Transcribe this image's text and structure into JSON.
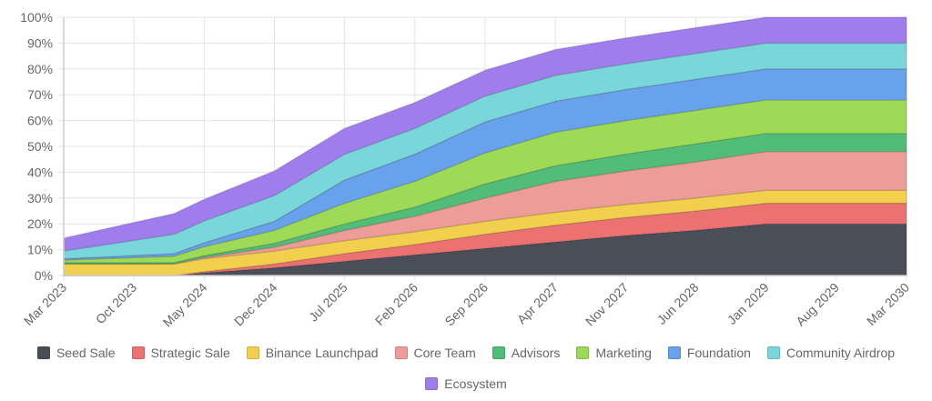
{
  "chart_data": {
    "type": "area",
    "stacked": true,
    "title": "",
    "xlabel": "",
    "ylabel": "",
    "ylim": [
      0,
      100
    ],
    "y_tick_format": "percent",
    "y_ticks": [
      "0%",
      "10%",
      "20%",
      "30%",
      "40%",
      "50%",
      "60%",
      "70%",
      "80%",
      "90%",
      "100%"
    ],
    "x_tick_labels": [
      "Mar 2023",
      "Oct 2023",
      "May 2024",
      "Dec 2024",
      "Jul 2025",
      "Feb 2026",
      "Sep 2026",
      "Apr 2027",
      "Nov 2027",
      "Jun 2028",
      "Jan 2029",
      "Aug 2029",
      "Mar 2030"
    ],
    "grid": true,
    "legend_position": "bottom",
    "x": [
      "2023-03",
      "2024-02",
      "2024-05",
      "2024-12",
      "2025-07",
      "2026-02",
      "2026-09",
      "2027-04",
      "2027-11",
      "2028-06",
      "2029-01",
      "2030-03"
    ],
    "series": [
      {
        "name": "Seed Sale",
        "color": "#4a4f57",
        "values": [
          0,
          0,
          1,
          3,
          5.5,
          8,
          10.5,
          13,
          15.5,
          17.5,
          20,
          20
        ]
      },
      {
        "name": "Strategic Sale",
        "color": "#ec7272",
        "values": [
          0,
          0,
          0.5,
          1.5,
          3,
          4,
          5.5,
          6.5,
          7,
          7.5,
          8,
          8
        ]
      },
      {
        "name": "Binance Launchpad",
        "color": "#f2d04e",
        "values": [
          4.5,
          4.5,
          5,
          5,
          5,
          5,
          5,
          5,
          5,
          5,
          5,
          5
        ]
      },
      {
        "name": "Core Team",
        "color": "#ee9c98",
        "values": [
          0,
          0,
          0.5,
          1.5,
          4,
          6,
          9,
          12,
          13,
          14,
          15,
          15
        ]
      },
      {
        "name": "Advisors",
        "color": "#52bd78",
        "values": [
          0.5,
          0.5,
          0.7,
          1.5,
          2.5,
          3.5,
          5.5,
          6,
          6.5,
          7,
          7,
          7
        ]
      },
      {
        "name": "Marketing",
        "color": "#9ddb56",
        "values": [
          1,
          2.5,
          3.5,
          5,
          8,
          10,
          12,
          13,
          13,
          13,
          13,
          13
        ]
      },
      {
        "name": "Foundation",
        "color": "#68a1ec",
        "values": [
          0.5,
          1,
          1.5,
          3.5,
          9,
          10.5,
          12,
          12,
          12,
          12,
          12,
          12
        ]
      },
      {
        "name": "Community Airdrop",
        "color": "#79d6da",
        "values": [
          3,
          7.5,
          8.5,
          10,
          10,
          10,
          10,
          10,
          10,
          10,
          10,
          10
        ]
      },
      {
        "name": "Ecosystem",
        "color": "#a07ded",
        "values": [
          5,
          8,
          8.3,
          9.5,
          10,
          10,
          10,
          10,
          10,
          10,
          10,
          10
        ]
      }
    ]
  }
}
